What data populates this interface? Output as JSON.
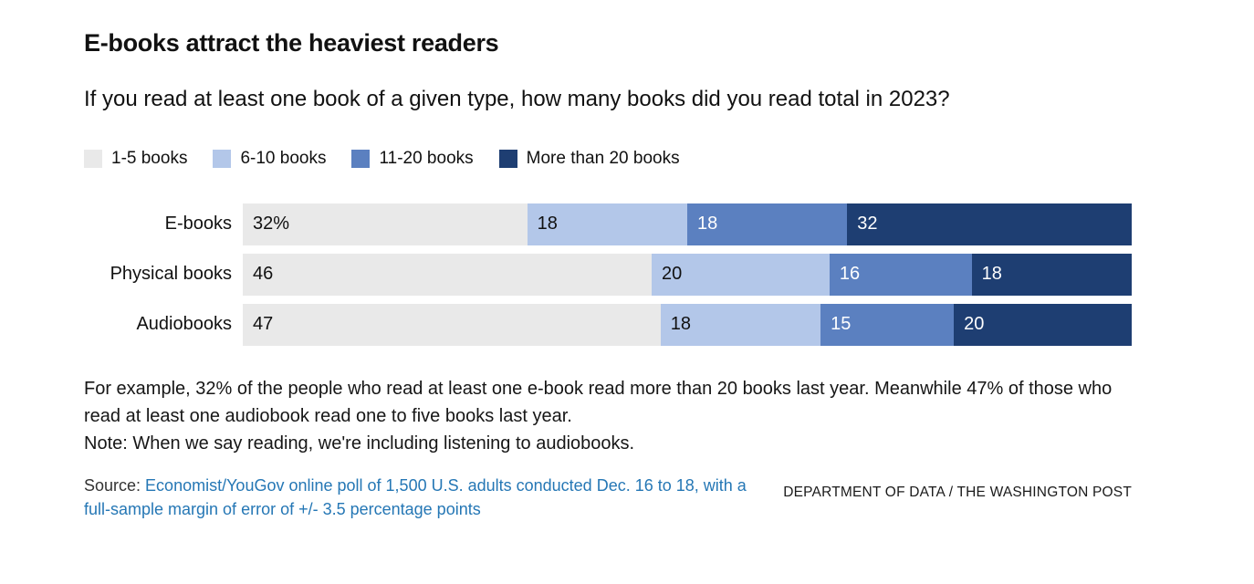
{
  "chart_data": {
    "type": "bar",
    "subtype": "horizontal-stacked",
    "title": "E-books attract the heaviest readers",
    "subtitle": "If you read at least one book of a given type, how many books did you read total in 2023?",
    "categories": [
      "E-books",
      "Physical books",
      "Audiobooks"
    ],
    "series": [
      {
        "name": "1-5 books",
        "color": "#e9e9e9",
        "text_color": "#111111",
        "values": [
          32,
          46,
          47
        ],
        "labels": [
          "32%",
          "46",
          "47"
        ]
      },
      {
        "name": "6-10 books",
        "color": "#b3c7e9",
        "text_color": "#111111",
        "values": [
          18,
          20,
          18
        ],
        "labels": [
          "18",
          "20",
          "18"
        ]
      },
      {
        "name": "11-20 books",
        "color": "#5b80c0",
        "text_color": "#ffffff",
        "values": [
          18,
          16,
          15
        ],
        "labels": [
          "18",
          "16",
          "15"
        ]
      },
      {
        "name": "More than 20 books",
        "color": "#1e3e72",
        "text_color": "#ffffff",
        "values": [
          32,
          18,
          20
        ],
        "labels": [
          "32",
          "18",
          "20"
        ]
      }
    ],
    "xlim": [
      0,
      100
    ],
    "legend_position": "top",
    "grid": false
  },
  "notes": {
    "example": "For example, 32% of the people who read at least one e-book read more than 20 books last year. Meanwhile 47% of those who read at least one audiobook read one to five books last year.",
    "note": "Note: When we say reading, we're including listening to audiobooks."
  },
  "source": {
    "prefix": "Source: ",
    "link_text": "Economist/YouGov online poll of 1,500 U.S. adults conducted Dec. 16 to 18, with a full-sample margin of error of +/- 3.5 percentage points"
  },
  "attribution": "DEPARTMENT OF DATA / THE WASHINGTON POST"
}
